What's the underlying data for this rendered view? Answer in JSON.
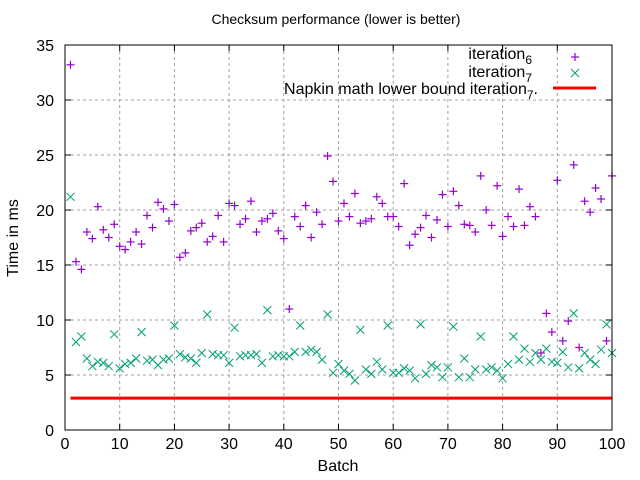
{
  "chart_data": {
    "type": "scatter",
    "title": "Checksum performance (lower is better)",
    "xlabel": "Batch",
    "ylabel": "Time in ms",
    "xlim": [
      0,
      100
    ],
    "ylim": [
      0,
      35
    ],
    "xticks": [
      0,
      10,
      20,
      30,
      40,
      50,
      60,
      70,
      80,
      90,
      100
    ],
    "yticks": [
      0,
      5,
      10,
      15,
      20,
      25,
      30,
      35
    ],
    "grid": true,
    "legend_position": "top-right",
    "series": [
      {
        "name": "iteration",
        "subscript": "6",
        "marker": "plus",
        "color": "#9400d3",
        "x": [
          1,
          2,
          3,
          4,
          5,
          6,
          7,
          8,
          9,
          10,
          11,
          12,
          13,
          14,
          15,
          16,
          17,
          18,
          19,
          20,
          21,
          22,
          23,
          24,
          25,
          26,
          27,
          28,
          29,
          30,
          31,
          32,
          33,
          34,
          35,
          36,
          37,
          38,
          39,
          40,
          41,
          42,
          43,
          44,
          45,
          46,
          47,
          48,
          49,
          50,
          51,
          52,
          53,
          54,
          55,
          56,
          57,
          58,
          59,
          60,
          61,
          62,
          63,
          64,
          65,
          66,
          67,
          68,
          69,
          70,
          71,
          72,
          73,
          74,
          75,
          76,
          77,
          78,
          79,
          80,
          81,
          82,
          83,
          84,
          85,
          86,
          87,
          88,
          89,
          90,
          91,
          92,
          93,
          94,
          95,
          96,
          97,
          98,
          99,
          100
        ],
        "values": [
          33.2,
          15.3,
          14.6,
          18.0,
          17.4,
          20.3,
          18.2,
          17.5,
          18.7,
          16.7,
          16.4,
          17.1,
          18.0,
          16.9,
          19.5,
          18.4,
          20.7,
          20.1,
          19.0,
          20.5,
          15.7,
          16.1,
          18.1,
          18.4,
          18.8,
          17.1,
          17.6,
          19.5,
          17.1,
          20.6,
          20.4,
          18.7,
          19.2,
          20.8,
          18.0,
          19.0,
          19.2,
          19.7,
          18.1,
          17.4,
          11.0,
          19.4,
          18.5,
          20.4,
          17.5,
          19.8,
          18.7,
          24.9,
          22.6,
          19.0,
          20.6,
          19.4,
          21.5,
          18.8,
          19.0,
          19.2,
          21.2,
          20.6,
          19.4,
          19.4,
          18.5,
          22.4,
          16.8,
          17.8,
          18.4,
          19.5,
          17.5,
          19.1,
          21.4,
          18.5,
          21.7,
          20.4,
          18.7,
          18.6,
          18.0,
          23.1,
          20.0,
          18.6,
          22.2,
          17.6,
          19.4,
          18.5,
          21.9,
          18.6,
          20.3,
          19.4,
          7.0,
          10.6,
          8.9,
          22.7,
          8.1,
          9.9,
          24.1,
          7.5,
          20.8,
          19.8,
          22.0,
          21.0,
          8.1,
          23.1
        ]
      },
      {
        "name": "iteration",
        "subscript": "7",
        "marker": "cross",
        "color": "#009e73",
        "x": [
          1,
          2,
          3,
          4,
          5,
          6,
          7,
          8,
          9,
          10,
          11,
          12,
          13,
          14,
          15,
          16,
          17,
          18,
          19,
          20,
          21,
          22,
          23,
          24,
          25,
          26,
          27,
          28,
          29,
          30,
          31,
          32,
          33,
          34,
          35,
          36,
          37,
          38,
          39,
          40,
          41,
          42,
          43,
          44,
          45,
          46,
          47,
          48,
          49,
          50,
          51,
          52,
          53,
          54,
          55,
          56,
          57,
          58,
          59,
          60,
          61,
          62,
          63,
          64,
          65,
          66,
          67,
          68,
          69,
          70,
          71,
          72,
          73,
          74,
          75,
          76,
          77,
          78,
          79,
          80,
          81,
          82,
          83,
          84,
          85,
          86,
          87,
          88,
          89,
          90,
          91,
          92,
          93,
          94,
          95,
          96,
          97,
          98,
          99,
          100
        ],
        "values": [
          21.2,
          8.0,
          8.5,
          6.5,
          5.8,
          6.2,
          6.1,
          5.8,
          8.7,
          5.6,
          6.0,
          6.1,
          6.5,
          8.9,
          6.3,
          6.4,
          5.9,
          6.4,
          6.5,
          9.5,
          6.9,
          6.6,
          6.5,
          6.1,
          7.0,
          10.5,
          6.9,
          6.8,
          6.8,
          6.1,
          9.3,
          6.7,
          6.8,
          6.8,
          6.9,
          6.1,
          10.9,
          6.7,
          6.8,
          6.7,
          6.7,
          7.1,
          9.5,
          7.1,
          7.3,
          7.1,
          6.4,
          10.5,
          5.2,
          6.0,
          5.4,
          5.1,
          4.5,
          9.1,
          5.5,
          5.1,
          6.2,
          5.5,
          9.5,
          5.2,
          5.2,
          5.6,
          5.4,
          4.7,
          9.6,
          5.1,
          5.9,
          5.7,
          4.8,
          5.7,
          9.4,
          4.8,
          6.5,
          4.8,
          5.5,
          8.5,
          5.5,
          5.7,
          5.4,
          4.7,
          6.0,
          8.5,
          6.4,
          7.4,
          6.2,
          7.0,
          6.4,
          7.4,
          6.2,
          6.1,
          7.1,
          5.7,
          10.6,
          5.6,
          7.0,
          6.4,
          6.0,
          7.3,
          9.6,
          7.0
        ]
      }
    ],
    "reference_line": {
      "name": "Napkin math lower bound iteration",
      "subscript": "7",
      "suffix": ".",
      "type": "hline",
      "y": 2.9,
      "x_range": [
        1,
        100
      ],
      "color": "#ff0000"
    }
  }
}
